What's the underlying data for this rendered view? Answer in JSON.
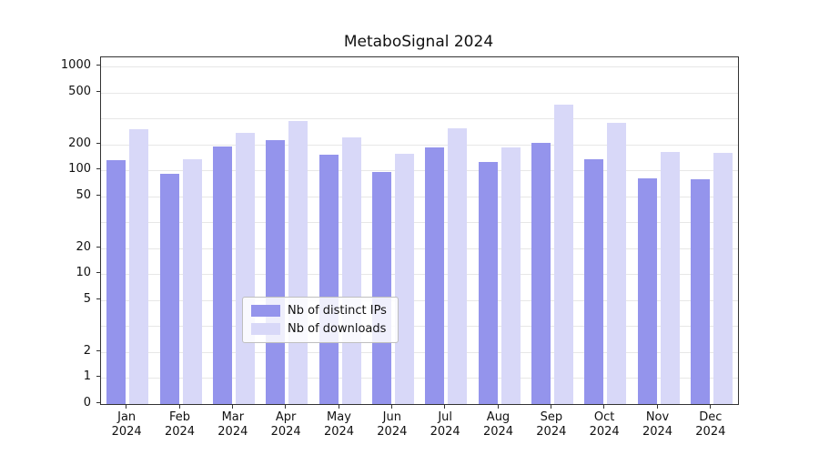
{
  "title": "MetaboSignal 2024",
  "chart_data": {
    "type": "bar",
    "title": "MetaboSignal 2024",
    "scale": "log-like (R barplot style: ticks 0,1,2,5,10,20,50,100,200,500,1000)",
    "year": "2024",
    "months": [
      "Jan",
      "Feb",
      "Mar",
      "Apr",
      "May",
      "Jun",
      "Jul",
      "Aug",
      "Sep",
      "Oct",
      "Nov",
      "Dec"
    ],
    "categories": [
      "Jan 2024",
      "Feb 2024",
      "Mar 2024",
      "Apr 2024",
      "May 2024",
      "Jun 2024",
      "Jul 2024",
      "Aug 2024",
      "Sep 2024",
      "Oct 2024",
      "Nov 2024",
      "Dec 2024"
    ],
    "series": [
      {
        "name": "Nb of distinct IPs",
        "color": "#9494ec",
        "values": [
          130,
          90,
          190,
          215,
          150,
          95,
          185,
          125,
          205,
          135,
          80,
          78
        ]
      },
      {
        "name": "Nb of downloads",
        "color": "#d8d8f8",
        "values": [
          260,
          135,
          245,
          300,
          225,
          155,
          265,
          185,
          400,
          290,
          165,
          160
        ]
      }
    ],
    "y_ticks": [
      0,
      1,
      2,
      5,
      10,
      20,
      50,
      100,
      200,
      500,
      1000
    ],
    "y_scale_stops": [
      [
        0,
        0
      ],
      [
        1,
        1
      ],
      [
        2,
        2
      ],
      [
        5,
        4
      ],
      [
        10,
        5
      ],
      [
        20,
        6
      ],
      [
        50,
        8
      ],
      [
        100,
        9
      ],
      [
        200,
        10
      ],
      [
        500,
        12
      ],
      [
        1000,
        13
      ]
    ],
    "ylim_top_unit": 13.35,
    "grid": "horizontal light-gray lines at every half-decade step",
    "legend_position": "bottom-center inside plot",
    "colors": {
      "distinct_ips": "#9494ec",
      "downloads": "#d8d8f8",
      "gridline": "#e7e7e7",
      "axis": "#333333"
    }
  }
}
